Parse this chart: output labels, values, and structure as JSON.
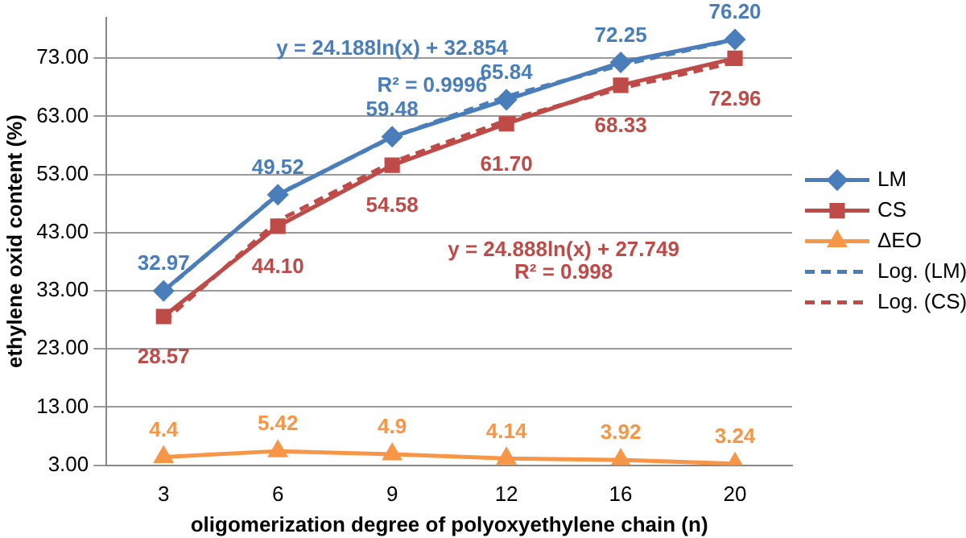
{
  "chart_data": {
    "type": "line",
    "xlabel": "oligomerization degree of polyoxyethylene chain (n)",
    "ylabel": "ethylene oxid content (%)",
    "categories": [
      "3",
      "6",
      "9",
      "12",
      "16",
      "20"
    ],
    "series": [
      {
        "name": "LM",
        "color": "#4a7ebb",
        "marker": "diamond",
        "values": [
          32.97,
          49.52,
          59.48,
          65.84,
          72.25,
          76.2
        ],
        "value_labels": [
          "32.97",
          "49.52",
          "59.48",
          "65.84",
          "72.25",
          "76.20"
        ]
      },
      {
        "name": "CS",
        "color": "#be4b48",
        "marker": "square",
        "values": [
          28.57,
          44.1,
          54.58,
          61.7,
          68.33,
          72.96
        ],
        "value_labels": [
          "28.57",
          "44.10",
          "54.58",
          "61.70",
          "68.33",
          "72.96"
        ]
      },
      {
        "name": "ΔEO",
        "color": "#f79646",
        "marker": "triangle",
        "values": [
          4.4,
          5.42,
          4.9,
          4.14,
          3.92,
          3.24
        ],
        "value_labels": [
          "4.4",
          "5.42",
          "4.9",
          "4.14",
          "3.92",
          "3.24"
        ]
      },
      {
        "name": "Log. (LM)",
        "color": "#4a7ebb",
        "marker": "none",
        "line_style": "dashed",
        "values": [
          32.9,
          49.6,
          59.4,
          66.4,
          71.8,
          76.2
        ]
      },
      {
        "name": "Log. (CS)",
        "color": "#be4b48",
        "marker": "none",
        "line_style": "dashed",
        "values": [
          27.7,
          45.0,
          55.1,
          62.3,
          67.8,
          72.3
        ]
      }
    ],
    "annotations": [
      "y = 24.188ln(x) + 32.854",
      "R² = 0.9996",
      "y = 24.888ln(x) + 27.749",
      "R² = 0.998"
    ],
    "ylim": [
      3,
      80
    ],
    "yticks": [
      {
        "value": 3,
        "label": "3.00"
      },
      {
        "value": 13,
        "label": "13.00"
      },
      {
        "value": 23,
        "label": "23.00"
      },
      {
        "value": 33,
        "label": "33.00"
      },
      {
        "value": 43,
        "label": "43.00"
      },
      {
        "value": 53,
        "label": "53.00"
      },
      {
        "value": 63,
        "label": "63.00"
      },
      {
        "value": 73,
        "label": "73.00"
      }
    ],
    "grid": "y",
    "legend": "right"
  }
}
